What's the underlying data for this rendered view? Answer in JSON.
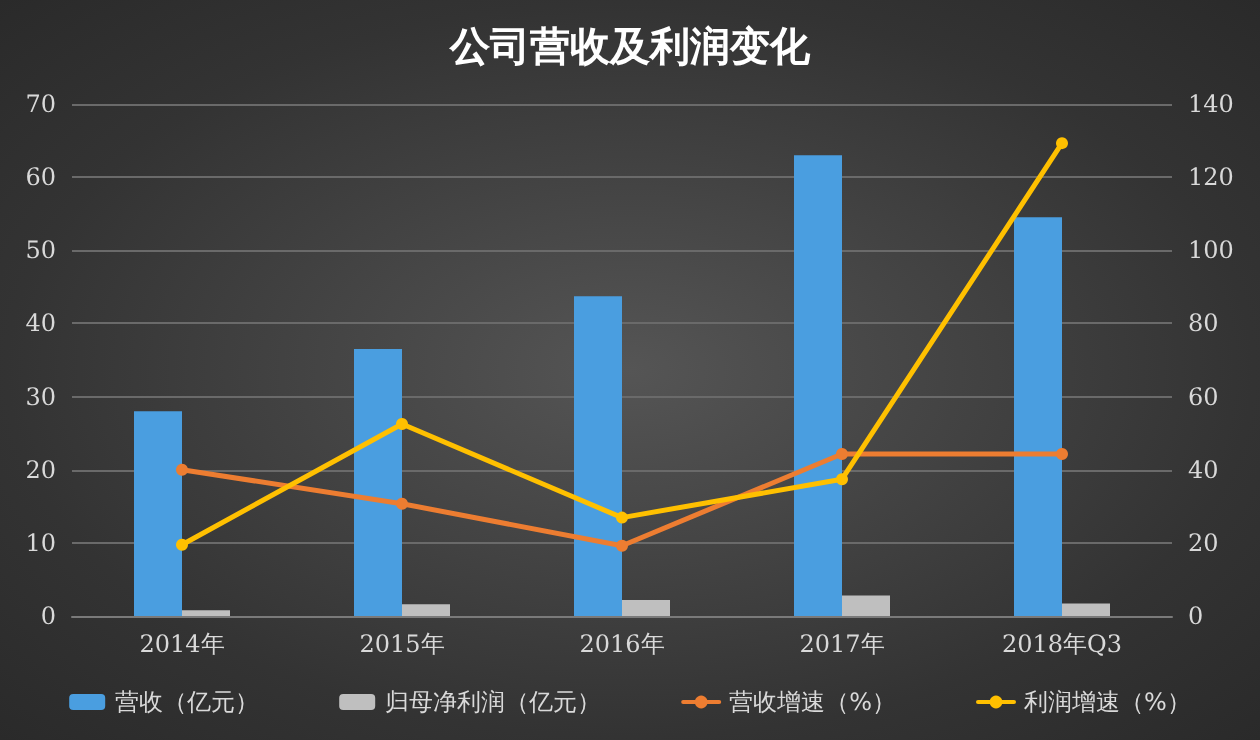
{
  "chart_data": {
    "type": "bar",
    "title": "公司营收及利润变化",
    "categories": [
      "2014年",
      "2015年",
      "2016年",
      "2017年",
      "2018年Q3"
    ],
    "series": [
      {
        "name": "营收（亿元）",
        "color": "#4a9ee0",
        "values": [
          28,
          36.5,
          43.7,
          63,
          54.5
        ]
      },
      {
        "name": "归母净利润（亿元）",
        "color": "#bfbfbf",
        "values": [
          0.8,
          1.6,
          2.2,
          2.8,
          1.7
        ]
      },
      {
        "name": "营收增速（%）",
        "type": "line",
        "axis": "y2",
        "color": "#ed7d31",
        "values": [
          40,
          30.7,
          19.2,
          44.3,
          44.3
        ]
      },
      {
        "name": "利润增速（%）",
        "type": "line",
        "axis": "y2",
        "color": "#ffc000",
        "values": [
          19.5,
          52.5,
          26.9,
          37.4,
          129.3
        ]
      }
    ],
    "ylim": [
      0,
      70
    ],
    "yticks": [
      0,
      10,
      20,
      30,
      40,
      50,
      60,
      70
    ],
    "y2lim": [
      0,
      140
    ],
    "y2ticks": [
      0,
      20,
      40,
      60,
      80,
      100,
      120,
      140
    ],
    "grid": "y",
    "legend": "bottom",
    "marker": "circle",
    "line_style": "solid"
  }
}
